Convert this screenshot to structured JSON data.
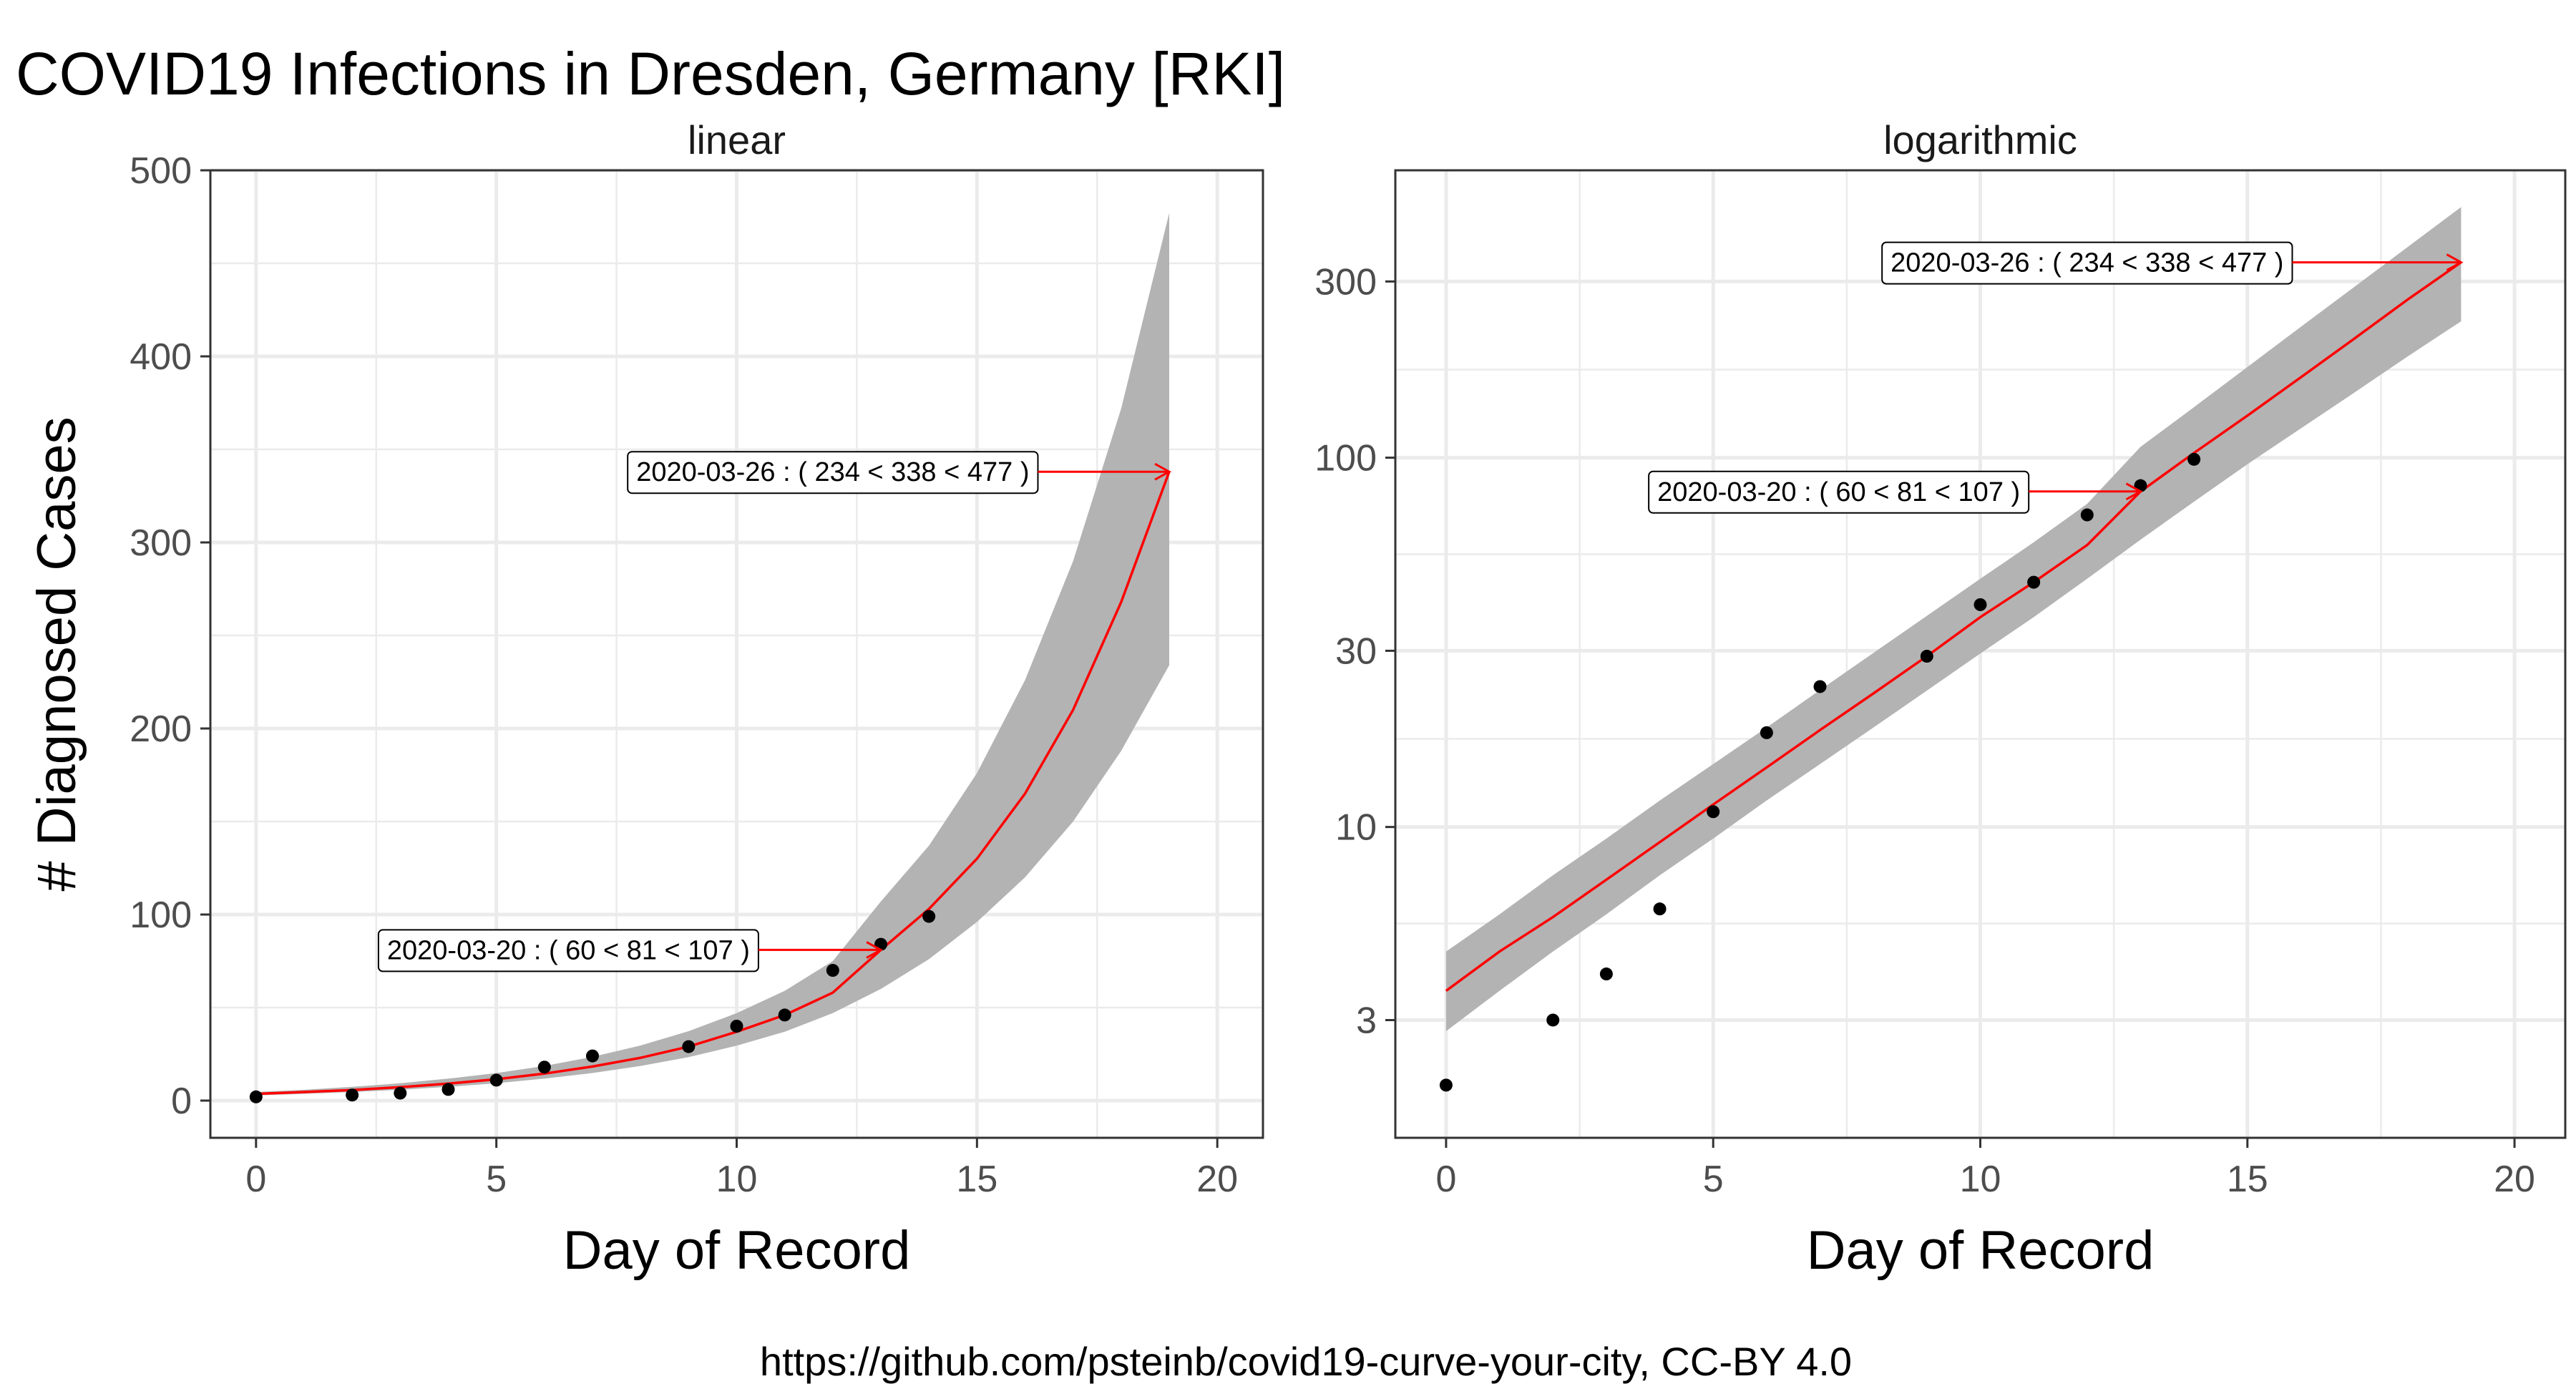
{
  "title": "COVID19 Infections in Dresden, Germany [RKI]",
  "caption": "https://github.com/psteinb/covid19-curve-your-city, CC-BY 4.0",
  "colors": {
    "fit_line": "#ff0000",
    "ribbon": "#b3b3b3",
    "points": "#000000",
    "grid": "#ebebeb",
    "panel_border": "#333333"
  },
  "chart_data": [
    {
      "type": "scatter",
      "facet_label": "linear",
      "xlabel": "Day of Record",
      "ylabel": "# Diagnosed Cases",
      "xlim": [
        -0.95,
        20.95
      ],
      "ylim": [
        -20,
        500
      ],
      "x_ticks": [
        0,
        5,
        10,
        15,
        20
      ],
      "y_ticks": [
        0,
        100,
        200,
        300,
        400,
        500
      ],
      "y_scale": "linear",
      "grid": true,
      "points": {
        "x": [
          0,
          2,
          3,
          4,
          5,
          6,
          7,
          9,
          10,
          11,
          12,
          13,
          14
        ],
        "y": [
          2,
          3,
          4,
          6,
          11,
          18,
          24,
          29,
          40,
          46,
          70,
          84,
          99
        ]
      },
      "fit": {
        "x": [
          0,
          1,
          2,
          3,
          4,
          5,
          6,
          7,
          8,
          9,
          10,
          11,
          12,
          13,
          14,
          15,
          16,
          17,
          18,
          19
        ],
        "y": [
          3.6,
          4.6,
          5.7,
          7.2,
          9.1,
          11.5,
          14.5,
          18.3,
          23,
          29,
          37,
          46,
          58,
          81,
          103,
          130,
          165,
          210,
          268,
          338
        ],
        "lower": [
          2.8,
          3.6,
          4.6,
          5.8,
          7.4,
          9.3,
          11.8,
          14.8,
          18.6,
          23.4,
          29.5,
          37,
          47,
          60,
          76,
          96,
          120,
          150,
          188,
          234
        ],
        "upper": [
          4.6,
          5.8,
          7.4,
          9.3,
          11.8,
          14.8,
          18.6,
          23.5,
          29.6,
          37.3,
          47,
          59,
          75,
          107,
          137,
          176,
          226,
          290,
          372,
          477
        ]
      },
      "annotations": [
        {
          "text": "2020-03-20 : ( 60 < 81 < 107 )",
          "x": 13,
          "y": 81,
          "label_x": 6.5,
          "label_y": 81
        },
        {
          "text": "2020-03-26 : ( 234 < 338 < 477 )",
          "x": 19,
          "y": 338,
          "label_x": 12.0,
          "label_y": 338
        }
      ]
    },
    {
      "type": "scatter",
      "facet_label": "logarithmic",
      "xlabel": "Day of Record",
      "ylabel": "",
      "xlim": [
        -0.95,
        20.95
      ],
      "ylim": [
        1.44,
        600
      ],
      "x_ticks": [
        0,
        5,
        10,
        15,
        20
      ],
      "y_ticks": [
        3,
        10,
        30,
        100,
        300
      ],
      "y_scale": "log",
      "grid": true,
      "points": {
        "x": [
          0,
          2,
          3,
          4,
          5,
          6,
          7,
          9,
          10,
          11,
          12,
          13,
          14
        ],
        "y": [
          2,
          3,
          4,
          6,
          11,
          18,
          24,
          29,
          40,
          46,
          70,
          84,
          99
        ]
      },
      "fit": {
        "x": [
          0,
          1,
          2,
          3,
          4,
          5,
          6,
          7,
          8,
          9,
          10,
          11,
          12,
          13,
          14,
          15,
          16,
          17,
          18,
          19
        ],
        "y": [
          3.6,
          4.6,
          5.7,
          7.2,
          9.1,
          11.5,
          14.5,
          18.3,
          23,
          29,
          37,
          46,
          58,
          81,
          103,
          130,
          165,
          210,
          268,
          338
        ],
        "lower": [
          2.8,
          3.6,
          4.6,
          5.8,
          7.4,
          9.3,
          11.8,
          14.8,
          18.6,
          23.4,
          29.5,
          37,
          47,
          60,
          76,
          96,
          120,
          150,
          188,
          234
        ],
        "upper": [
          4.6,
          5.8,
          7.4,
          9.3,
          11.8,
          14.8,
          18.6,
          23.5,
          29.6,
          37.3,
          47,
          59,
          75,
          107,
          137,
          176,
          226,
          290,
          372,
          477
        ]
      },
      "annotations": [
        {
          "text": "2020-03-20 : ( 60 < 81 < 107 )",
          "x": 13,
          "y": 81,
          "label_x": 7.35,
          "label_y": 81
        },
        {
          "text": "2020-03-26 : ( 234 < 338 < 477 )",
          "x": 19,
          "y": 338,
          "label_x": 12.0,
          "label_y": 338
        }
      ]
    }
  ]
}
